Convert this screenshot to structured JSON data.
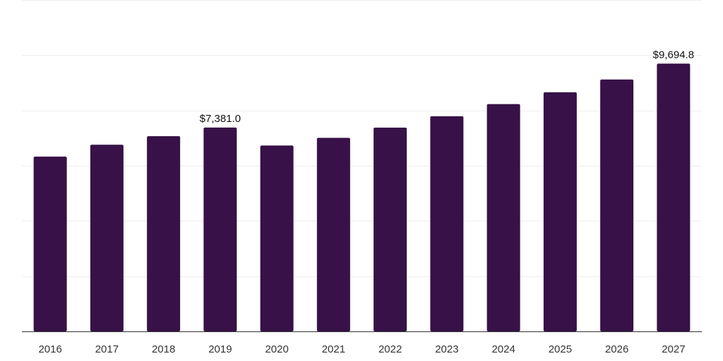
{
  "chart_data": {
    "type": "bar",
    "categories": [
      "2016",
      "2017",
      "2018",
      "2019",
      "2020",
      "2021",
      "2022",
      "2023",
      "2024",
      "2025",
      "2026",
      "2027"
    ],
    "series": [
      {
        "values": [
          6330,
          6760,
          7070,
          7381.0,
          6730,
          7010,
          7380,
          7790,
          8230,
          8660,
          9120,
          9694.8
        ],
        "color": "#371147"
      }
    ],
    "data_labels": [
      {
        "category": "2019",
        "text": "$7,381.0"
      },
      {
        "category": "2027",
        "text": "$9,694.8"
      }
    ],
    "ylim": [
      0,
      12000
    ],
    "y_gridlines": [
      0,
      2000,
      4000,
      6000,
      8000,
      10000,
      12000
    ],
    "grid": true,
    "legend": "none",
    "title": "",
    "xlabel": "",
    "ylabel": ""
  }
}
